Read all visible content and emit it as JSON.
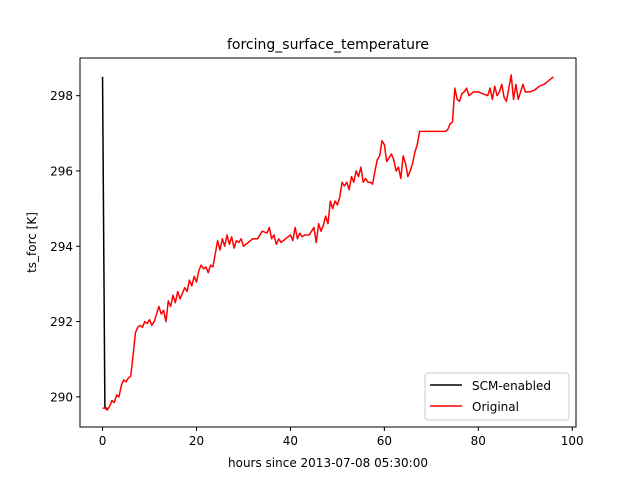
{
  "chart_data": {
    "type": "line",
    "title": "forcing_surface_temperature",
    "xlabel": "hours since 2013-07-08 05:30:00",
    "ylabel": "ts_forc [K]",
    "xlim": [
      -4.8,
      100.8
    ],
    "ylim": [
      289.2,
      299.0
    ],
    "xticks": [
      0,
      20,
      40,
      60,
      80,
      100
    ],
    "yticks": [
      290,
      292,
      294,
      296,
      298
    ],
    "grid": false,
    "legend_position": "lower-right",
    "series": [
      {
        "name": "SCM-enabled",
        "color": "#000000",
        "points": [
          [
            0,
            298.5
          ],
          [
            0.5,
            289.7
          ],
          [
            1,
            289.7
          ]
        ]
      },
      {
        "name": "Original",
        "color": "#ff0000",
        "points": [
          [
            0,
            289.7
          ],
          [
            0.5,
            289.7
          ],
          [
            1,
            289.65
          ],
          [
            1.5,
            289.75
          ],
          [
            2,
            289.9
          ],
          [
            2.5,
            289.85
          ],
          [
            3,
            290.05
          ],
          [
            3.5,
            290.0
          ],
          [
            4,
            290.3
          ],
          [
            4.5,
            290.45
          ],
          [
            5,
            290.4
          ],
          [
            5.5,
            290.5
          ],
          [
            6,
            290.55
          ],
          [
            6.5,
            291.1
          ],
          [
            7,
            291.7
          ],
          [
            7.5,
            291.85
          ],
          [
            8,
            291.9
          ],
          [
            8.5,
            291.85
          ],
          [
            9,
            292.0
          ],
          [
            9.5,
            291.95
          ],
          [
            10,
            292.05
          ],
          [
            10.5,
            291.9
          ],
          [
            11,
            292.0
          ],
          [
            11.5,
            292.2
          ],
          [
            12,
            292.4
          ],
          [
            12.5,
            292.2
          ],
          [
            13,
            292.3
          ],
          [
            13.5,
            292.0
          ],
          [
            14,
            292.55
          ],
          [
            14.5,
            292.4
          ],
          [
            15,
            292.7
          ],
          [
            15.5,
            292.5
          ],
          [
            16,
            292.8
          ],
          [
            16.5,
            292.6
          ],
          [
            17,
            292.75
          ],
          [
            17.5,
            292.9
          ],
          [
            18,
            292.8
          ],
          [
            18.5,
            293.1
          ],
          [
            19,
            292.95
          ],
          [
            19.5,
            293.2
          ],
          [
            20,
            293.05
          ],
          [
            20.5,
            293.35
          ],
          [
            21,
            293.5
          ],
          [
            21.5,
            293.4
          ],
          [
            22,
            293.45
          ],
          [
            22.5,
            293.3
          ],
          [
            23,
            293.5
          ],
          [
            23.5,
            293.45
          ],
          [
            24,
            293.8
          ],
          [
            24.5,
            294.15
          ],
          [
            25,
            293.9
          ],
          [
            25.5,
            294.2
          ],
          [
            26,
            294.0
          ],
          [
            26.5,
            294.3
          ],
          [
            27,
            294.05
          ],
          [
            27.5,
            294.25
          ],
          [
            28,
            293.95
          ],
          [
            28.5,
            294.15
          ],
          [
            29,
            294.1
          ],
          [
            29.5,
            294.2
          ],
          [
            30,
            294.0
          ],
          [
            31,
            294.1
          ],
          [
            32,
            294.2
          ],
          [
            33,
            294.2
          ],
          [
            34,
            294.4
          ],
          [
            35,
            294.35
          ],
          [
            35.5,
            294.5
          ],
          [
            36,
            294.2
          ],
          [
            36.5,
            294.3
          ],
          [
            37,
            294.05
          ],
          [
            37.5,
            294.2
          ],
          [
            38,
            294.1
          ],
          [
            39,
            294.2
          ],
          [
            40,
            294.3
          ],
          [
            40.5,
            294.15
          ],
          [
            41,
            294.5
          ],
          [
            41.5,
            294.2
          ],
          [
            42,
            294.35
          ],
          [
            42.5,
            294.25
          ],
          [
            43,
            294.3
          ],
          [
            44,
            294.3
          ],
          [
            45,
            294.5
          ],
          [
            45.5,
            294.1
          ],
          [
            46,
            294.6
          ],
          [
            46.5,
            294.4
          ],
          [
            47,
            294.55
          ],
          [
            47.5,
            294.8
          ],
          [
            48,
            294.6
          ],
          [
            48.5,
            295.2
          ],
          [
            49,
            295.0
          ],
          [
            49.5,
            295.2
          ],
          [
            50,
            295.1
          ],
          [
            50.5,
            295.3
          ],
          [
            51,
            295.7
          ],
          [
            51.5,
            295.6
          ],
          [
            52,
            295.7
          ],
          [
            52.5,
            295.5
          ],
          [
            53,
            295.85
          ],
          [
            53.5,
            295.7
          ],
          [
            54,
            296.0
          ],
          [
            54.5,
            295.85
          ],
          [
            55,
            296.1
          ],
          [
            55.5,
            295.7
          ],
          [
            56,
            295.8
          ],
          [
            56.5,
            295.7
          ],
          [
            57,
            295.7
          ],
          [
            57.5,
            295.65
          ],
          [
            58,
            296.0
          ],
          [
            58.5,
            296.3
          ],
          [
            59,
            296.4
          ],
          [
            59.5,
            296.8
          ],
          [
            60,
            296.7
          ],
          [
            60.5,
            296.25
          ],
          [
            61,
            296.35
          ],
          [
            61.5,
            296.45
          ],
          [
            62,
            296.3
          ],
          [
            62.5,
            296.0
          ],
          [
            63,
            296.1
          ],
          [
            63.5,
            295.8
          ],
          [
            64,
            296.4
          ],
          [
            64.5,
            296.2
          ],
          [
            65,
            295.85
          ],
          [
            65.5,
            296.0
          ],
          [
            66,
            296.2
          ],
          [
            66.5,
            296.5
          ],
          [
            67,
            296.7
          ],
          [
            67.5,
            297.05
          ],
          [
            68,
            297.05
          ],
          [
            70,
            297.05
          ],
          [
            72,
            297.05
          ],
          [
            73,
            297.05
          ],
          [
            73.5,
            297.1
          ],
          [
            74,
            297.25
          ],
          [
            74.5,
            297.3
          ],
          [
            75,
            298.2
          ],
          [
            75.5,
            297.9
          ],
          [
            76,
            297.85
          ],
          [
            76.5,
            298.05
          ],
          [
            77,
            298.1
          ],
          [
            77.5,
            298.2
          ],
          [
            78,
            298.0
          ],
          [
            79,
            298.1
          ],
          [
            80,
            298.1
          ],
          [
            81,
            298.05
          ],
          [
            82,
            298.0
          ],
          [
            82.5,
            298.2
          ],
          [
            83,
            297.9
          ],
          [
            83.5,
            298.25
          ],
          [
            84,
            298.0
          ],
          [
            84.5,
            298.1
          ],
          [
            85,
            298.3
          ],
          [
            85.5,
            297.95
          ],
          [
            86,
            297.85
          ],
          [
            86.5,
            298.2
          ],
          [
            87,
            298.55
          ],
          [
            87.5,
            297.9
          ],
          [
            88,
            298.3
          ],
          [
            88.5,
            297.9
          ],
          [
            89,
            298.1
          ],
          [
            89.5,
            298.3
          ],
          [
            90,
            298.1
          ],
          [
            91,
            298.1
          ],
          [
            92,
            298.15
          ],
          [
            93,
            298.25
          ],
          [
            94,
            298.3
          ],
          [
            95,
            298.4
          ],
          [
            96,
            298.5
          ]
        ]
      }
    ]
  }
}
